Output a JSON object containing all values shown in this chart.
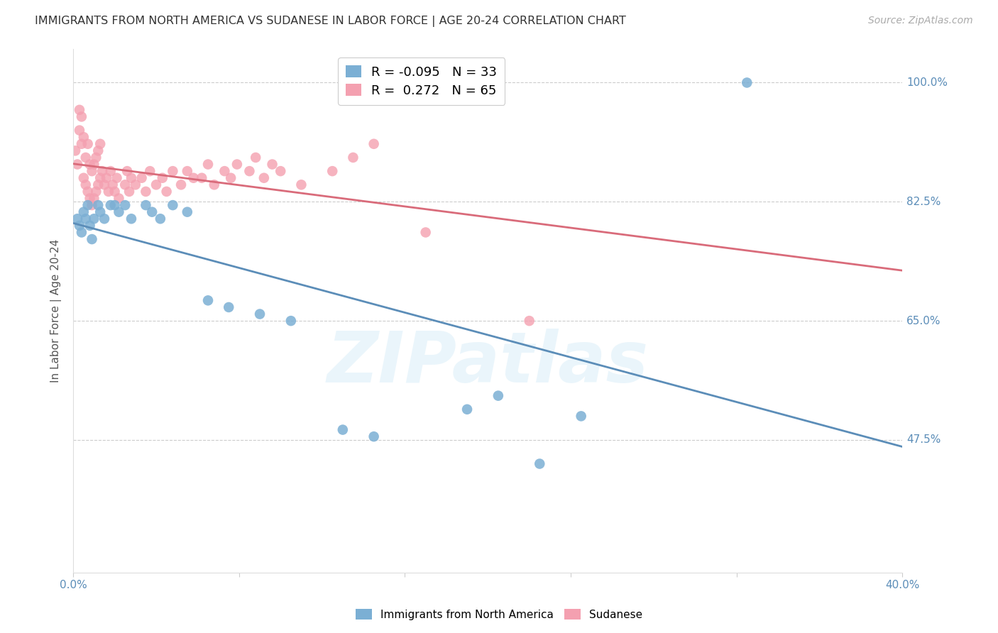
{
  "title": "IMMIGRANTS FROM NORTH AMERICA VS SUDANESE IN LABOR FORCE | AGE 20-24 CORRELATION CHART",
  "source": "Source: ZipAtlas.com",
  "ylabel": "In Labor Force | Age 20-24",
  "watermark": "ZIPatlas",
  "xlim": [
    0.0,
    0.4
  ],
  "ylim": [
    0.28,
    1.05
  ],
  "blue_color": "#7bafd4",
  "pink_color": "#f4a0b0",
  "blue_line_color": "#5b8db8",
  "pink_line_color": "#d96b7a",
  "legend_blue_label": "R = -0.095   N = 33",
  "legend_pink_label": "R =  0.272   N = 65",
  "legend_blue": "Immigrants from North America",
  "legend_pink": "Sudanese",
  "blue_x": [
    0.002,
    0.003,
    0.004,
    0.005,
    0.006,
    0.007,
    0.008,
    0.009,
    0.01,
    0.012,
    0.013,
    0.015,
    0.018,
    0.02,
    0.022,
    0.025,
    0.028,
    0.035,
    0.038,
    0.042,
    0.048,
    0.055,
    0.065,
    0.075,
    0.09,
    0.105,
    0.13,
    0.145,
    0.19,
    0.205,
    0.225,
    0.245,
    0.325
  ],
  "blue_y": [
    0.8,
    0.79,
    0.78,
    0.81,
    0.8,
    0.82,
    0.79,
    0.77,
    0.8,
    0.82,
    0.81,
    0.8,
    0.82,
    0.82,
    0.81,
    0.82,
    0.8,
    0.82,
    0.81,
    0.8,
    0.82,
    0.81,
    0.68,
    0.67,
    0.66,
    0.65,
    0.49,
    0.48,
    0.52,
    0.54,
    0.44,
    0.51,
    1.0
  ],
  "pink_x": [
    0.001,
    0.002,
    0.003,
    0.003,
    0.004,
    0.004,
    0.005,
    0.005,
    0.006,
    0.006,
    0.007,
    0.007,
    0.008,
    0.008,
    0.009,
    0.009,
    0.01,
    0.01,
    0.011,
    0.011,
    0.012,
    0.012,
    0.013,
    0.013,
    0.014,
    0.015,
    0.016,
    0.017,
    0.018,
    0.019,
    0.02,
    0.021,
    0.022,
    0.025,
    0.026,
    0.027,
    0.028,
    0.03,
    0.033,
    0.035,
    0.037,
    0.04,
    0.043,
    0.045,
    0.048,
    0.052,
    0.055,
    0.058,
    0.062,
    0.065,
    0.068,
    0.073,
    0.076,
    0.079,
    0.085,
    0.088,
    0.092,
    0.096,
    0.1,
    0.11,
    0.125,
    0.135,
    0.145,
    0.17,
    0.22
  ],
  "pink_y": [
    0.9,
    0.88,
    0.93,
    0.96,
    0.91,
    0.95,
    0.86,
    0.92,
    0.85,
    0.89,
    0.84,
    0.91,
    0.83,
    0.88,
    0.82,
    0.87,
    0.83,
    0.88,
    0.84,
    0.89,
    0.85,
    0.9,
    0.86,
    0.91,
    0.87,
    0.85,
    0.86,
    0.84,
    0.87,
    0.85,
    0.84,
    0.86,
    0.83,
    0.85,
    0.87,
    0.84,
    0.86,
    0.85,
    0.86,
    0.84,
    0.87,
    0.85,
    0.86,
    0.84,
    0.87,
    0.85,
    0.87,
    0.86,
    0.86,
    0.88,
    0.85,
    0.87,
    0.86,
    0.88,
    0.87,
    0.89,
    0.86,
    0.88,
    0.87,
    0.85,
    0.87,
    0.89,
    0.91,
    0.78,
    0.65
  ]
}
